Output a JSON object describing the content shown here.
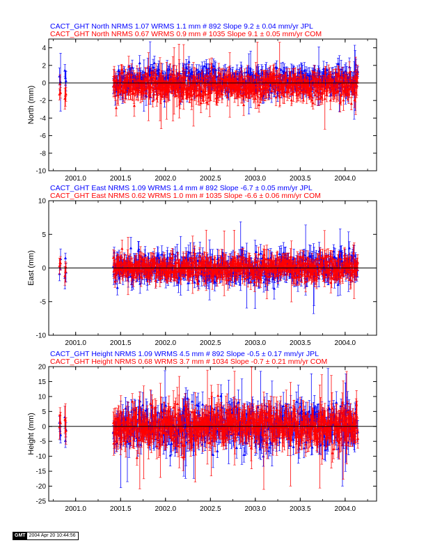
{
  "colors": {
    "jpl": "#0000ff",
    "com": "#ff0000",
    "axis": "#000000"
  },
  "chart_data": [
    {
      "type": "scatter",
      "component": "North",
      "ylabel": "North (mm)",
      "xlim": [
        2000.7,
        2004.35
      ],
      "ylim": [
        -10,
        5
      ],
      "yticks": [
        -10,
        -8,
        -6,
        -4,
        -2,
        0,
        2,
        4
      ],
      "xticks": [
        "2001.0",
        "2001.5",
        "2002.0",
        "2002.5",
        "2003.0",
        "2003.5",
        "2004.0"
      ],
      "xtick_values": [
        2001.0,
        2001.5,
        2002.0,
        2002.5,
        2003.0,
        2003.5,
        2004.0
      ],
      "data_start_early": [
        2000.82,
        2000.88
      ],
      "data_start_main": 2001.42,
      "data_end": 2004.14,
      "header": [
        {
          "text": "CACT_GHT North NRMS 1.07 WRMS  1.1 mm # 892 Slope    9.2 ±  0.04 mm/yr JPL",
          "color": "#0000ff"
        },
        {
          "text": "CACT_GHT North NRMS 0.67 WRMS  0.9 mm # 1035 Slope   9.1 ±  0.05 mm/yr COM",
          "color": "#ff0000"
        }
      ],
      "series": [
        {
          "name": "JPL",
          "nrms": 1.07,
          "wrms_mm": 1.1,
          "count": 892,
          "slope_mm_yr": 9.2,
          "slope_sigma": 0.04,
          "spread": 0.9,
          "err": 0.8,
          "offset": 0.3
        },
        {
          "name": "COM",
          "nrms": 0.67,
          "wrms_mm": 0.9,
          "count": 1035,
          "slope_mm_yr": 9.1,
          "slope_sigma": 0.05,
          "spread": 0.9,
          "err": 0.9,
          "offset": -0.4
        }
      ]
    },
    {
      "type": "scatter",
      "component": "East",
      "ylabel": "East (mm)",
      "xlim": [
        2000.7,
        2004.35
      ],
      "ylim": [
        -10,
        10
      ],
      "yticks": [
        -10,
        -5,
        0,
        5,
        10
      ],
      "xticks": [
        "2001.0",
        "2001.5",
        "2002.0",
        "2002.5",
        "2003.0",
        "2003.5",
        "2004.0"
      ],
      "xtick_values": [
        2001.0,
        2001.5,
        2002.0,
        2002.5,
        2003.0,
        2003.5,
        2004.0
      ],
      "data_start_early": [
        2000.82,
        2000.88
      ],
      "data_start_main": 2001.42,
      "data_end": 2004.14,
      "header": [
        {
          "text": "CACT_GHT East NRMS 1.09 WRMS  1.4 mm # 892 Slope   -6.7 ±  0.05 mm/yr JPL",
          "color": "#0000ff"
        },
        {
          "text": "CACT_GHT East NRMS 0.62 WRMS  1.0 mm # 1035 Slope   -6.6 ±  0.06 mm/yr COM",
          "color": "#ff0000"
        }
      ],
      "series": [
        {
          "name": "JPL",
          "nrms": 1.09,
          "wrms_mm": 1.4,
          "count": 892,
          "slope_mm_yr": -6.7,
          "slope_sigma": 0.05,
          "spread": 1.3,
          "err": 1.2,
          "offset": 0.0
        },
        {
          "name": "COM",
          "nrms": 0.62,
          "wrms_mm": 1.0,
          "count": 1035,
          "slope_mm_yr": -6.6,
          "slope_sigma": 0.06,
          "spread": 1.0,
          "err": 1.1,
          "offset": 0.0
        }
      ]
    },
    {
      "type": "scatter",
      "component": "Height",
      "ylabel": "Height (mm)",
      "xlim": [
        2000.7,
        2004.35
      ],
      "ylim": [
        -25,
        20
      ],
      "yticks": [
        -25,
        -20,
        -15,
        -10,
        -5,
        0,
        5,
        10,
        15,
        20
      ],
      "xticks": [
        "2001.0",
        "2001.5",
        "2002.0",
        "2002.5",
        "2003.0",
        "2003.5",
        "2004.0"
      ],
      "xtick_values": [
        2001.0,
        2001.5,
        2002.0,
        2002.5,
        2003.0,
        2003.5,
        2004.0
      ],
      "data_start_early": [
        2000.82,
        2000.88
      ],
      "data_start_main": 2001.42,
      "data_end": 2004.14,
      "header": [
        {
          "text": "CACT_GHT Height NRMS 1.09 WRMS  4.5 mm # 892 Slope   -0.5 ±  0.17 mm/yr JPL",
          "color": "#0000ff"
        },
        {
          "text": "CACT_GHT Height NRMS 0.68 WRMS  3.7 mm # 1034 Slope   -0.7 ±  0.21 mm/yr COM",
          "color": "#ff0000"
        }
      ],
      "series": [
        {
          "name": "JPL",
          "nrms": 1.09,
          "wrms_mm": 4.5,
          "count": 892,
          "slope_mm_yr": -0.5,
          "slope_sigma": 0.17,
          "spread": 4.2,
          "err": 3.5,
          "offset": 0.0
        },
        {
          "name": "COM",
          "nrms": 0.68,
          "wrms_mm": 3.7,
          "count": 1034,
          "slope_mm_yr": -0.7,
          "slope_sigma": 0.21,
          "spread": 3.7,
          "err": 4.0,
          "offset": 0.0
        }
      ]
    }
  ],
  "stamp": {
    "logo": "GMT",
    "text": "2004 Apr 20 10:44:56"
  }
}
